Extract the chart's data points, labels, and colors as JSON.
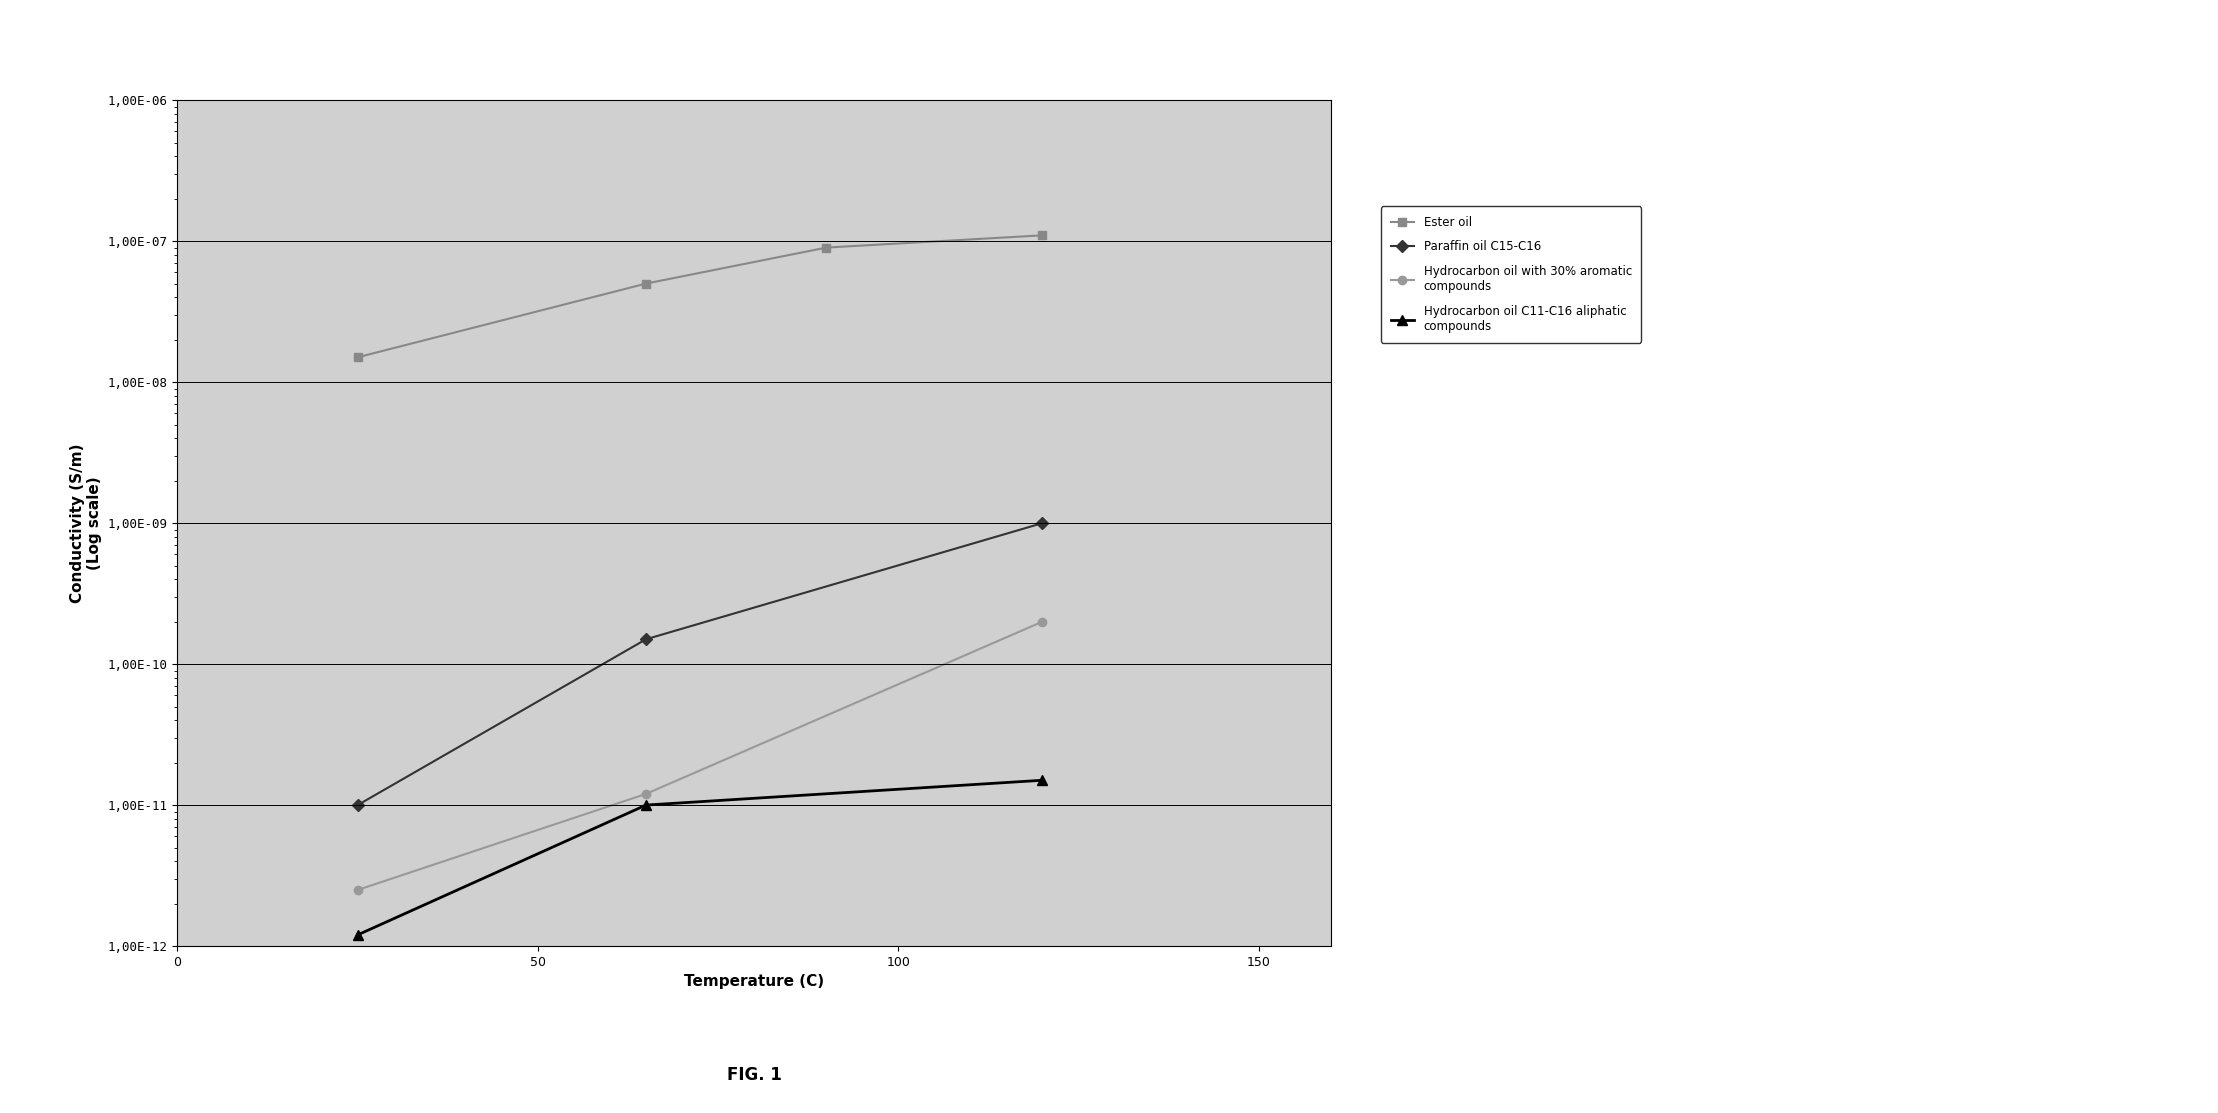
{
  "title": "FIG. 1",
  "xlabel": "Temperature (C)",
  "ylabel": "Conductivity (S/m)\n(Log scale)",
  "xlim": [
    0,
    160
  ],
  "ylim_log": [
    1e-12,
    1e-06
  ],
  "yticks": [
    1e-12,
    1e-11,
    1e-10,
    1e-09,
    1e-08,
    1e-07,
    1e-06
  ],
  "ytick_labels": [
    "1,00E-12",
    "1,00E-11",
    "1,00E-10",
    "1,00E-09",
    "1,00E-08",
    "1,00E-07",
    "1,00E-06"
  ],
  "xticks": [
    0,
    50,
    100,
    150
  ],
  "series": [
    {
      "label": "Ester oil",
      "x": [
        25,
        65,
        90,
        120
      ],
      "y": [
        1.5e-08,
        5e-08,
        9e-08,
        1.1e-07
      ],
      "color": "#888888",
      "marker": "s",
      "markersize": 6,
      "linewidth": 1.5
    },
    {
      "label": "Paraffin oil C15-C16",
      "x": [
        25,
        65,
        120
      ],
      "y": [
        1e-11,
        1.5e-10,
        1e-09
      ],
      "color": "#333333",
      "marker": "D",
      "markersize": 6,
      "linewidth": 1.5
    },
    {
      "label": "Hydrocarbon oil with 30% aromatic\ncompounds",
      "x": [
        25,
        65,
        120
      ],
      "y": [
        2.5e-12,
        1.2e-11,
        2e-10
      ],
      "color": "#999999",
      "marker": "o",
      "markersize": 6,
      "linewidth": 1.5
    },
    {
      "label": "Hydrocarbon oil C11-C16 aliphatic\ncompounds",
      "x": [
        25,
        65,
        120
      ],
      "y": [
        1.2e-12,
        1e-11,
        1.5e-11
      ],
      "color": "#000000",
      "marker": "^",
      "markersize": 7,
      "linewidth": 2.0
    }
  ],
  "plot_bg_color": "#d0d0d0",
  "fig_bg_color": "#ffffff",
  "legend_fontsize": 8.5,
  "axis_label_fontsize": 11,
  "tick_fontsize": 9,
  "title_fontsize": 12
}
